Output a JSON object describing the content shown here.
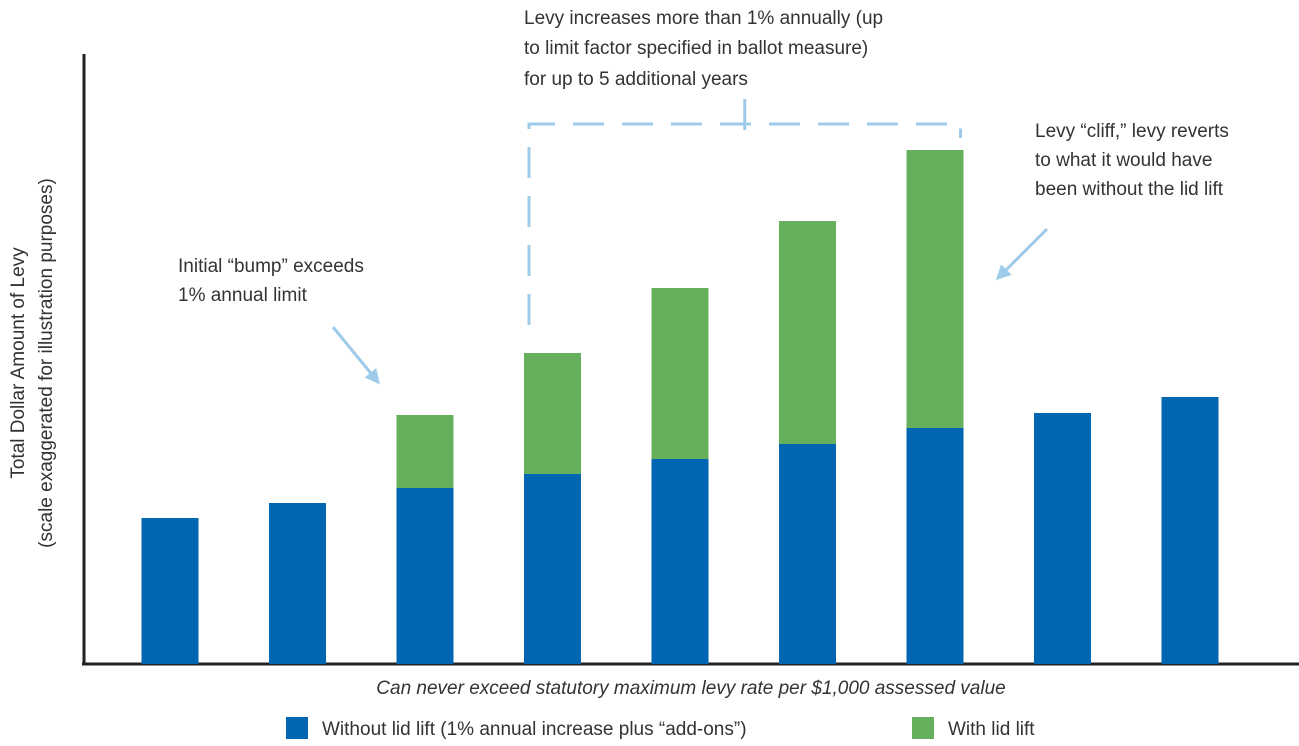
{
  "chart_data": {
    "type": "bar",
    "stacked": true,
    "categories": [
      "",
      "",
      "",
      "",
      "",
      "",
      "",
      "",
      ""
    ],
    "series": [
      {
        "name": "Without lid lift (1% annual increase plus “add-ons”)",
        "color": "#0066b2",
        "values": [
          146,
          161,
          176,
          190,
          205,
          220,
          236,
          251,
          267
        ]
      },
      {
        "name": "With lid lift",
        "color": "#66b05d",
        "values": [
          0,
          0,
          73,
          121,
          171,
          223,
          278,
          0,
          0
        ]
      }
    ],
    "ylabel": "Total Dollar Amount of Levy",
    "ylabel_secondary": "(scale exaggerated for illustration purposes)",
    "xlabel": "Can never exceed statutory maximum levy rate per $1,000 assessed value",
    "ylim": [
      0,
      580
    ],
    "grid": false,
    "legend_position": "bottom",
    "annotations": [
      {
        "name": "initial-bump",
        "lines": [
          "Initial “bump” exceeds",
          "1% annual limit"
        ],
        "target_bar": 2,
        "arrow_color": "#9ecbe9"
      },
      {
        "name": "levy-increases",
        "lines": [
          "Levy increases more than 1% annually (up",
          "to limit factor specified in ballot measure)",
          "for up to 5 additional years"
        ],
        "bracket_bars": [
          3,
          6
        ],
        "bracket_color": "#9ecbe9"
      },
      {
        "name": "levy-cliff",
        "lines": [
          "Levy “cliff,” levy reverts",
          "to what it would have",
          "been without the lid lift"
        ],
        "target_bar": 6,
        "arrow_color": "#9ecbe9"
      }
    ]
  }
}
